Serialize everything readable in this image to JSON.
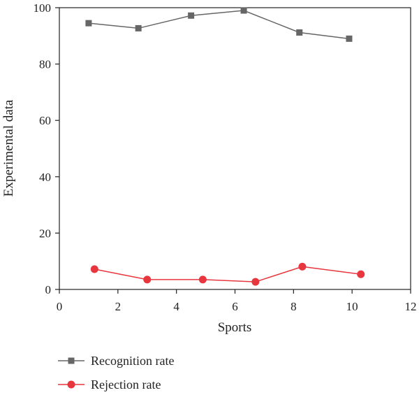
{
  "chart_data": {
    "type": "line",
    "xlabel": "Sports",
    "ylabel": "Experimental data",
    "xlim": [
      0,
      12
    ],
    "ylim": [
      0,
      100
    ],
    "xticks": [
      0,
      2,
      4,
      6,
      8,
      10,
      12
    ],
    "yticks": [
      0,
      20,
      40,
      60,
      80,
      100
    ],
    "grid": false,
    "legend_position": "bottom-left",
    "series": [
      {
        "name": "Recognition rate",
        "color": "#666666",
        "marker": "square",
        "x": [
          1.0,
          2.7,
          4.5,
          6.3,
          8.2,
          9.9
        ],
        "y": [
          94.5,
          92.7,
          97.2,
          99.0,
          91.2,
          89.0
        ]
      },
      {
        "name": "Rejection rate",
        "color": "#e8363e",
        "marker": "circle",
        "x": [
          1.2,
          3.0,
          4.9,
          6.7,
          8.3,
          10.3
        ],
        "y": [
          7.2,
          3.5,
          3.5,
          2.7,
          8.1,
          5.4
        ]
      }
    ]
  }
}
